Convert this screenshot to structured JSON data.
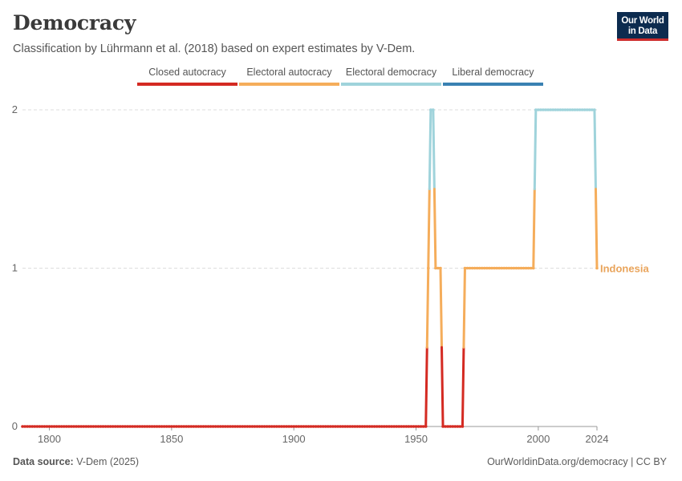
{
  "header": {
    "title": "Democracy",
    "subtitle": "Classification by Lührmann et al. (2018) based on expert estimates by V-Dem."
  },
  "logo": {
    "line1": "Our World",
    "line2": "in Data"
  },
  "legend": {
    "items": [
      {
        "label": "Closed autocracy",
        "color": "#d42a22"
      },
      {
        "label": "Electoral autocracy",
        "color": "#f5ad5b"
      },
      {
        "label": "Electoral democracy",
        "color": "#9fd3db"
      },
      {
        "label": "Liberal democracy",
        "color": "#3a81b2"
      }
    ]
  },
  "footer": {
    "source_label": "Data source:",
    "source_value": "V-Dem (2025)",
    "url": "OurWorldinData.org/democracy | CC BY"
  },
  "chart_data": {
    "type": "line",
    "xlim": [
      1789,
      2024
    ],
    "ylim": [
      0,
      2
    ],
    "x_ticks": [
      1800,
      1850,
      1900,
      1950,
      2000,
      2024
    ],
    "x_tick_labels": [
      "1800",
      "1850",
      "1900",
      "1950",
      "2000",
      "2024"
    ],
    "y_ticks": [
      0,
      1,
      2
    ],
    "y_tick_labels": [
      "0",
      "1",
      "2"
    ],
    "grid": "horizontal dashed",
    "category_colors": {
      "0": "#d42a22",
      "1": "#f5ad5b",
      "2": "#9fd3db",
      "3": "#3a81b2"
    },
    "series": [
      {
        "name": "Indonesia",
        "label_color": "#e9a45b",
        "segments": [
          {
            "from": 1789,
            "to": 1954,
            "value": 0
          },
          {
            "from": 1955,
            "to": 1955,
            "value": 1
          },
          {
            "from": 1956,
            "to": 1957,
            "value": 2
          },
          {
            "from": 1958,
            "to": 1960,
            "value": 1
          },
          {
            "from": 1961,
            "to": 1969,
            "value": 0
          },
          {
            "from": 1970,
            "to": 1998,
            "value": 1
          },
          {
            "from": 1999,
            "to": 2023,
            "value": 2
          },
          {
            "from": 2024,
            "to": 2024,
            "value": 1
          }
        ]
      }
    ]
  }
}
